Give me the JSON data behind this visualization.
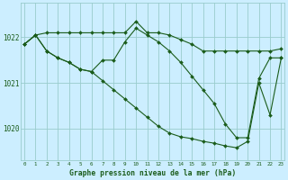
{
  "title": "Graphe pression niveau de la mer (hPa)",
  "bg_color": "#cceeff",
  "grid_color": "#99cccc",
  "line_color": "#1a5c1a",
  "x_ticks": [
    0,
    1,
    2,
    3,
    4,
    5,
    6,
    7,
    8,
    9,
    10,
    11,
    12,
    13,
    14,
    15,
    16,
    17,
    18,
    19,
    20,
    21,
    22,
    23
  ],
  "ylim": [
    1019.3,
    1022.75
  ],
  "yticks": [
    1020,
    1021,
    1022
  ],
  "line1": [
    1021.85,
    1022.05,
    1022.1,
    1022.1,
    1022.1,
    1022.1,
    1022.1,
    1022.1,
    1022.1,
    1022.1,
    1022.35,
    1022.1,
    1022.1,
    1022.05,
    1021.95,
    1021.85,
    1021.7,
    1021.7,
    1021.7,
    1021.7,
    1021.7,
    1021.7,
    1021.7,
    1021.75
  ],
  "line2": [
    1021.85,
    1022.05,
    1021.7,
    1021.55,
    1021.45,
    1021.3,
    1021.25,
    1021.5,
    1021.5,
    1021.9,
    1022.2,
    1022.05,
    1021.9,
    1021.7,
    1021.45,
    1021.15,
    1020.85,
    1020.55,
    1020.1,
    1019.8,
    1019.8,
    1021.1,
    1021.55,
    1021.55
  ],
  "line3": [
    1021.85,
    1022.05,
    1021.7,
    1021.55,
    1021.45,
    1021.3,
    1021.25,
    1021.05,
    1020.85,
    1020.65,
    1020.45,
    1020.25,
    1020.05,
    1019.9,
    1019.82,
    1019.78,
    1019.72,
    1019.68,
    1019.62,
    1019.58,
    1019.72,
    1021.0,
    1020.3,
    1021.55
  ]
}
